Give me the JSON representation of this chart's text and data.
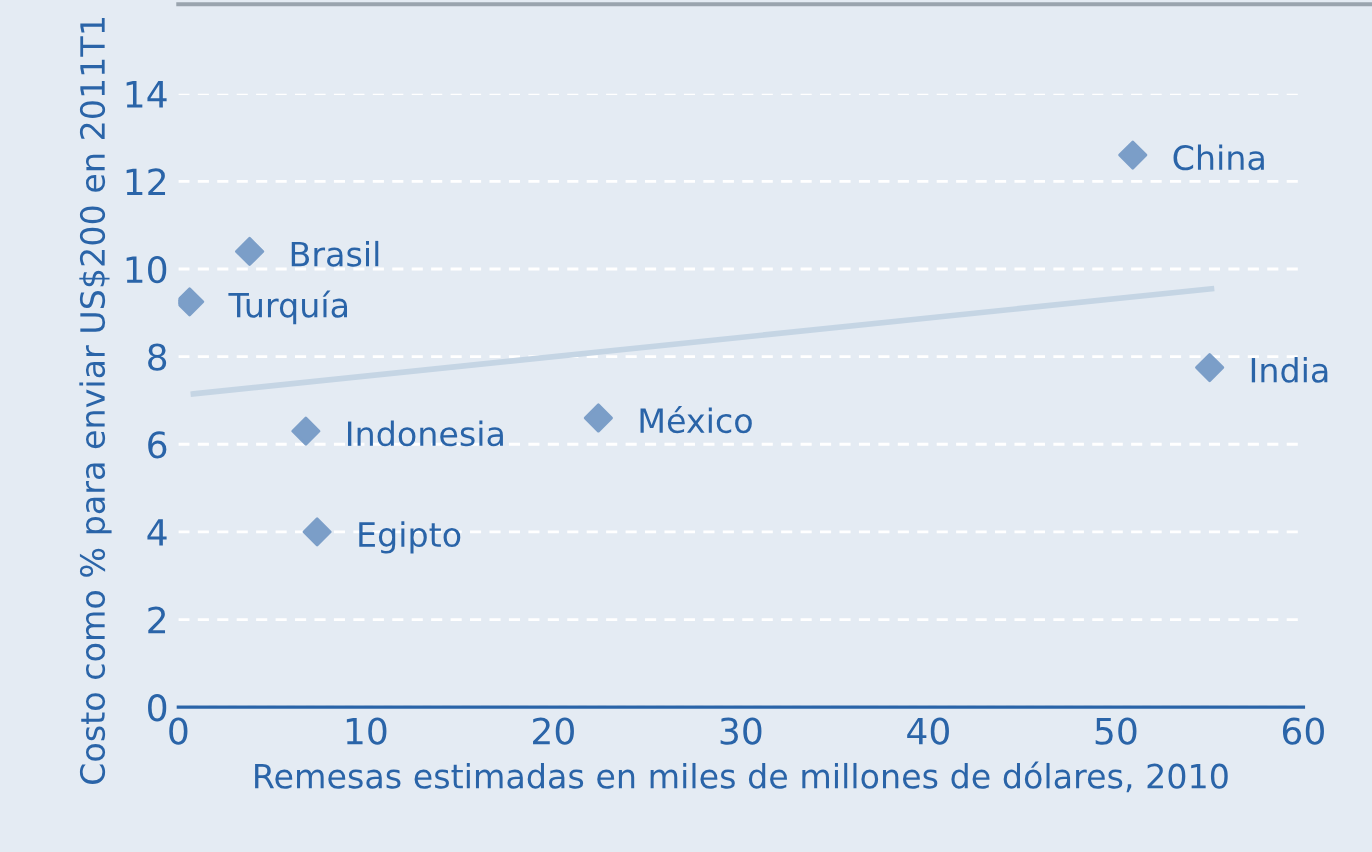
{
  "chart_data": {
    "type": "scatter",
    "xlabel": "Remesas estimadas en miles de millones de dólares, 2010",
    "ylabel": "Costo como % para enviar US$200 en 2011T1",
    "series": [
      {
        "color": "#7b9ec8",
        "x": [
          50.9,
          55.0,
          3.8,
          0.6,
          6.8,
          7.4,
          22.4
        ],
        "values": [
          12.6,
          7.75,
          10.4,
          9.25,
          6.3,
          4.0,
          6.6
        ],
        "marker": "diamond"
      },
      {
        "type": "line",
        "color": "#c5d5e4",
        "x": [
          0.8,
          55.1
        ],
        "values": [
          7.15,
          9.55
        ],
        "marker": "none"
      }
    ],
    "annotations": [
      {
        "text": "China",
        "x": 50.9,
        "y": 12.6
      },
      {
        "text": "India",
        "x": 55.0,
        "y": 7.75
      },
      {
        "text": "Brasil",
        "x": 3.8,
        "y": 10.4
      },
      {
        "text": "Turquía",
        "x": 0.6,
        "y": 9.25
      },
      {
        "text": "Indonesia",
        "x": 6.8,
        "y": 6.3
      },
      {
        "text": "Egipto",
        "x": 7.4,
        "y": 4.0
      },
      {
        "text": "México",
        "x": 22.4,
        "y": 6.6
      }
    ],
    "xlim": [
      0,
      60
    ],
    "ylim": [
      0,
      14
    ],
    "xticks": [
      0,
      10,
      20,
      30,
      40,
      50,
      60
    ],
    "yticks": [
      0,
      2,
      4,
      6,
      8,
      10,
      12,
      14
    ],
    "grid": "y"
  }
}
